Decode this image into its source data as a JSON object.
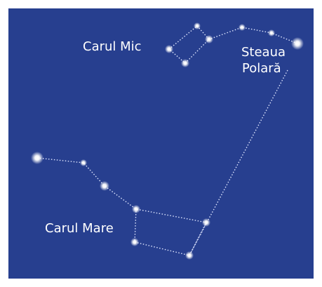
{
  "labels": {
    "little_dipper": "Carul Mic",
    "polaris": [
      "Steaua",
      "Polară"
    ],
    "big_dipper": "Carul Mare"
  }
}
